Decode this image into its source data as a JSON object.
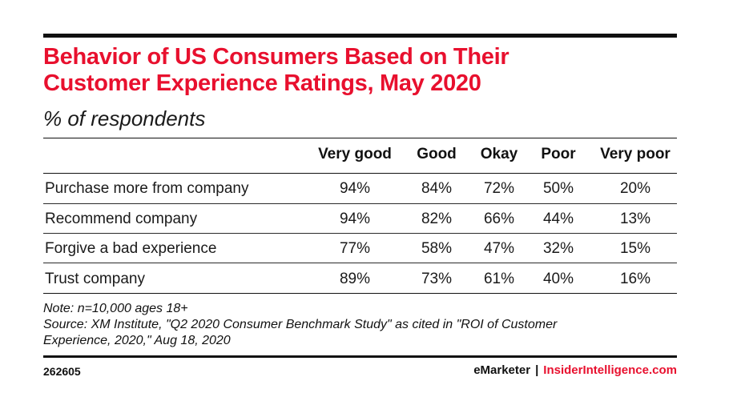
{
  "header": {
    "title_line1": "Behavior of US Consumers Based on Their",
    "title_line2": "Customer Experience Ratings, May 2020",
    "subtitle": "% of respondents"
  },
  "colors": {
    "accent_red": "#e8102e",
    "text": "#1a1a1a",
    "rule": "#111111"
  },
  "chart_data": {
    "type": "table",
    "title": "Behavior of US Consumers Based on Their Customer Experience Ratings, May 2020",
    "subtitle": "% of respondents",
    "columns": [
      "Very good",
      "Good",
      "Okay",
      "Poor",
      "Very poor"
    ],
    "rows": [
      {
        "label": "Purchase more from company",
        "values": [
          "94%",
          "84%",
          "72%",
          "50%",
          "20%"
        ]
      },
      {
        "label": "Recommend company",
        "values": [
          "94%",
          "82%",
          "66%",
          "44%",
          "13%"
        ]
      },
      {
        "label": "Forgive a bad experience",
        "values": [
          "77%",
          "58%",
          "47%",
          "32%",
          "15%"
        ]
      },
      {
        "label": "Trust company",
        "values": [
          "89%",
          "73%",
          "61%",
          "40%",
          "16%"
        ]
      }
    ]
  },
  "notes": {
    "note": "Note: n=10,000 ages 18+",
    "source_line1": "Source: XM Institute, \"Q2 2020 Consumer Benchmark Study\" as cited in \"ROI of Customer",
    "source_line2": "Experience, 2020,\" Aug 18, 2020"
  },
  "footer": {
    "chart_id": "262605",
    "brand": "eMarketer",
    "separator": "|",
    "site": "InsiderIntelligence.com"
  }
}
